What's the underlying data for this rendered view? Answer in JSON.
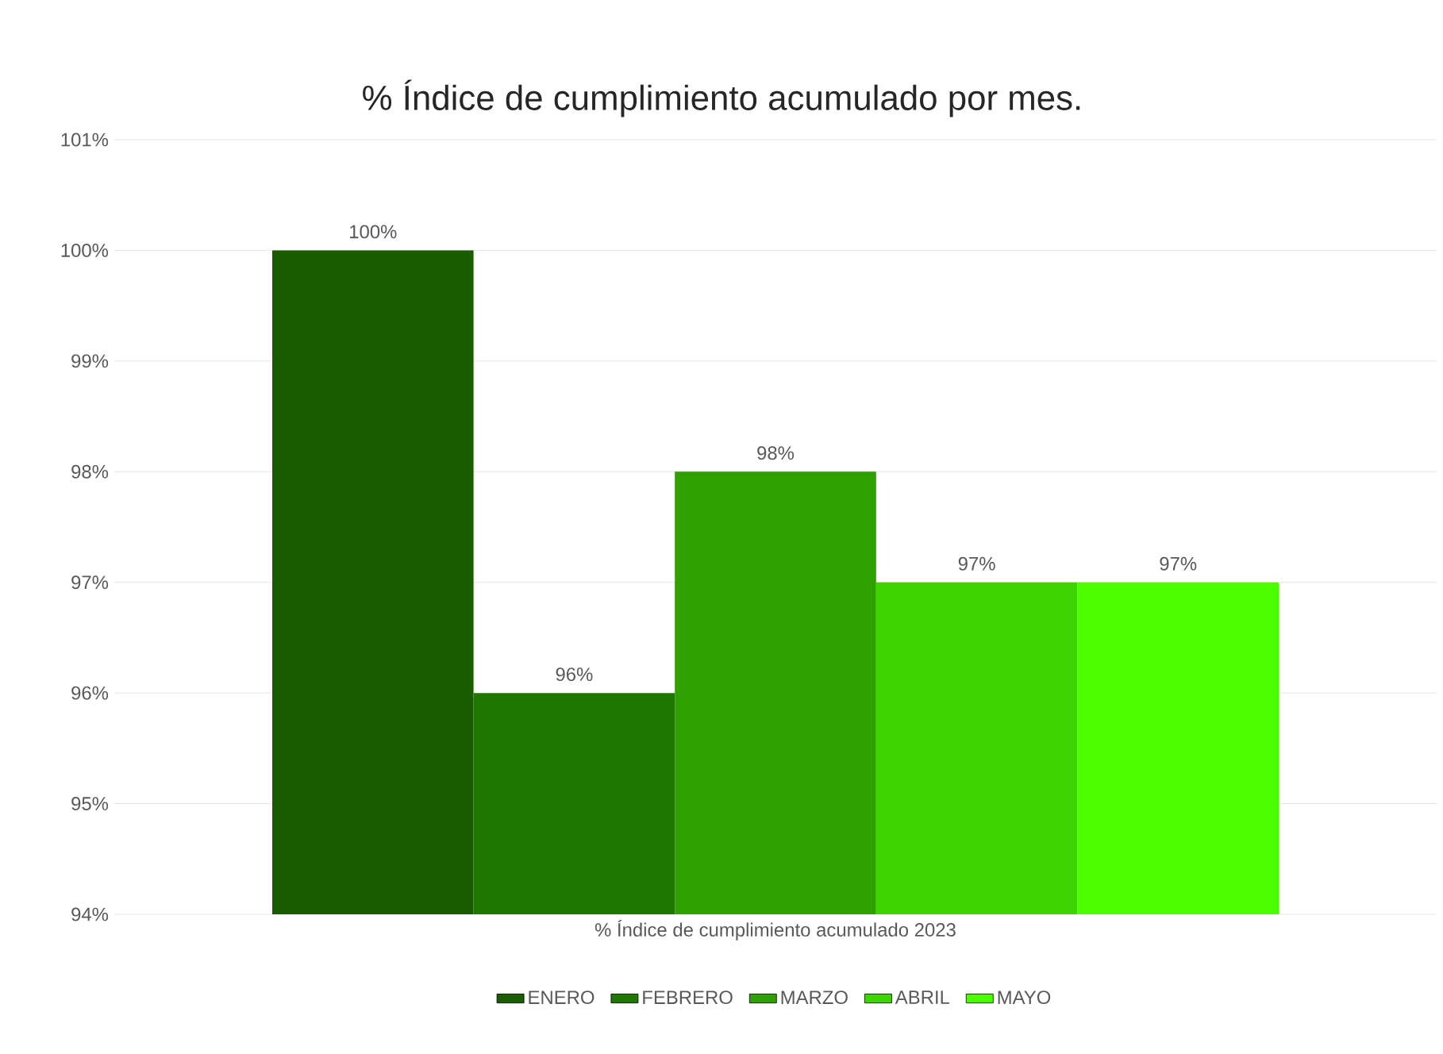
{
  "chart_data": {
    "type": "bar",
    "title": "% Índice de cumplimiento acumulado por mes.",
    "categories": [
      "% Índice de cumplimiento acumulado 2023"
    ],
    "series": [
      {
        "name": "ENERO",
        "color": "#1a5c00",
        "values": [
          100
        ],
        "value_labels": [
          "100%"
        ]
      },
      {
        "name": "FEBRERO",
        "color": "#1e7800",
        "values": [
          96
        ],
        "value_labels": [
          "96%"
        ]
      },
      {
        "name": "MARZO",
        "color": "#2ea000",
        "values": [
          98
        ],
        "value_labels": [
          "98%"
        ]
      },
      {
        "name": "ABRIL",
        "color": "#3ed400",
        "values": [
          97
        ],
        "value_labels": [
          "97%"
        ]
      },
      {
        "name": "MAYO",
        "color": "#4cff00",
        "values": [
          97
        ],
        "value_labels": [
          "97%"
        ]
      }
    ],
    "ylim": [
      94,
      101
    ],
    "yticks": [
      {
        "value": 94,
        "label": "94%"
      },
      {
        "value": 95,
        "label": "95%"
      },
      {
        "value": 96,
        "label": "96%"
      },
      {
        "value": 97,
        "label": "97%"
      },
      {
        "value": 98,
        "label": "98%"
      },
      {
        "value": 99,
        "label": "99%"
      },
      {
        "value": 100,
        "label": "100%"
      },
      {
        "value": 101,
        "label": "101%"
      }
    ],
    "grid": "y",
    "legend": "bottom"
  }
}
